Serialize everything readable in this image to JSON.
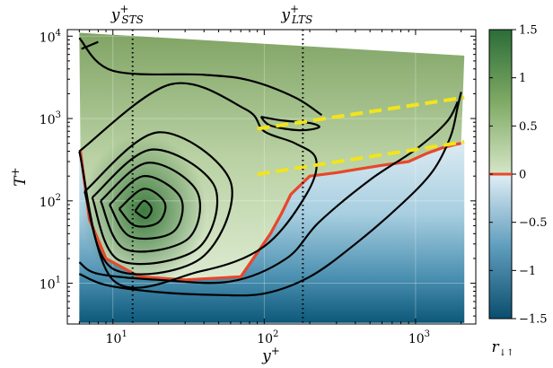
{
  "chart_data": {
    "type": "heatmap",
    "xlabel": "y",
    "xlabel_sup": "+",
    "ylabel": "T",
    "ylabel_sup": "+",
    "x_scale": "log",
    "y_scale": "log",
    "xlim": [
      5,
      2500
    ],
    "ylim": [
      3.2,
      12000
    ],
    "x_ticks": [
      {
        "value": 10,
        "base": "10",
        "exp": "1"
      },
      {
        "value": 100,
        "base": "10",
        "exp": "2"
      },
      {
        "value": 1000,
        "base": "10",
        "exp": "3"
      }
    ],
    "y_ticks": [
      {
        "value": 10,
        "base": "10",
        "exp": "1"
      },
      {
        "value": 100,
        "base": "10",
        "exp": "2"
      },
      {
        "value": 1000,
        "base": "10",
        "exp": "3"
      },
      {
        "value": 10000,
        "base": "10",
        "exp": "4"
      }
    ],
    "colorbar": {
      "label": "r",
      "label_sub": "↓↑",
      "min": -1.5,
      "max": 1.5,
      "ticks": [
        "1.5",
        "1",
        "0.5",
        "0",
        "−0.5",
        "−1",
        "−1.5"
      ],
      "colors": {
        "positive_high": "#2a6a36",
        "positive_low": "#cfe0bd",
        "negative_low": "#d9eaf2",
        "negative_high": "#0c5778"
      },
      "zero_color": "#e8472b"
    },
    "vertical_lines": [
      {
        "x": 13.5,
        "label": "y",
        "sup": "+",
        "sub": "STS",
        "style": "dotted"
      },
      {
        "x": 180,
        "label": "y",
        "sup": "+",
        "sub": "LTS",
        "style": "dotted"
      }
    ],
    "dashed_lines": [
      {
        "color": "#f2e41c",
        "points": [
          [
            90,
            750
          ],
          [
            2100,
            1800
          ]
        ]
      },
      {
        "color": "#f2e41c",
        "points": [
          [
            90,
            210
          ],
          [
            2100,
            520
          ]
        ]
      }
    ],
    "contour_color": "#000000",
    "contour_center": {
      "x": 16,
      "y": 75
    },
    "contours": [
      {
        "x": [
          14,
          16,
          18,
          16.5,
          14
        ],
        "y": [
          75,
          100,
          80,
          62,
          75
        ]
      },
      {
        "x": [
          11,
          16,
          22,
          20,
          14,
          11
        ],
        "y": [
          80,
          140,
          95,
          55,
          50,
          80
        ]
      },
      {
        "x": [
          9.5,
          16,
          28,
          25,
          13,
          9.5
        ],
        "y": [
          90,
          200,
          110,
          42,
          37,
          90
        ]
      },
      {
        "x": [
          8.3,
          17,
          36,
          31,
          12,
          8.3
        ],
        "y": [
          100,
          290,
          130,
          34,
          26,
          100
        ]
      },
      {
        "x": [
          7.3,
          18,
          47,
          36,
          11,
          7.3
        ],
        "y": [
          110,
          420,
          150,
          26,
          19,
          110
        ]
      },
      {
        "x": [
          6.5,
          20,
          60,
          38,
          10,
          6.5
        ],
        "y": [
          130,
          680,
          170,
          20,
          15,
          130
        ]
      },
      {
        "x": [
          6.0,
          24,
          75,
          100,
          160,
          220,
          190,
          100,
          38,
          10,
          6.0
        ],
        "y": [
          400,
          2600,
          1300,
          700,
          500,
          320,
          120,
          28,
          14,
          11,
          400
        ]
      },
      {
        "x": [
          6.0,
          10,
          40,
          80,
          160,
          240
        ],
        "y": [
          9500,
          3800,
          3400,
          2900,
          1800,
          1100
        ]
      },
      {
        "x": [
          6.0,
          8,
          20,
          60,
          140,
          230,
          500,
          1000,
          1600,
          1900
        ],
        "y": [
          18,
          13,
          11,
          10.5,
          20,
          55,
          180,
          420,
          900,
          1600
        ]
      },
      {
        "x": [
          6.0,
          9,
          20,
          50,
          100,
          200,
          400,
          800,
          1300,
          1700,
          1900,
          2000
        ],
        "y": [
          13,
          9.5,
          7.8,
          7.2,
          7.5,
          12,
          30,
          90,
          230,
          600,
          1400,
          2100
        ]
      },
      {
        "x": [
          95,
          130,
          200,
          230,
          170,
          110,
          95
        ],
        "y": [
          1050,
          950,
          880,
          780,
          720,
          820,
          1050
        ]
      },
      {
        "x": [
          6.2,
          8
        ],
        "y": [
          7000,
          8500
        ]
      }
    ],
    "zero_contour": {
      "x": [
        6.1,
        7,
        9,
        15,
        30,
        70,
        110,
        130,
        150,
        200,
        300,
        400,
        600,
        900,
        1200,
        1500,
        1800,
        2000
      ],
      "y": [
        400,
        60,
        20,
        12,
        11,
        12,
        40,
        70,
        120,
        200,
        220,
        240,
        270,
        300,
        380,
        440,
        480,
        500
      ]
    },
    "grid": true,
    "legend": "none"
  }
}
